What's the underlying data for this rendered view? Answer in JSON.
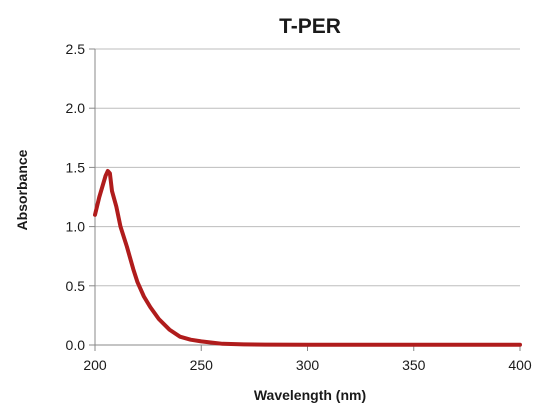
{
  "chart_data": {
    "type": "line",
    "title": "T-PER",
    "xlabel": "Wavelength (nm)",
    "ylabel": "Absorbance",
    "xlim": [
      200,
      400
    ],
    "ylim": [
      0,
      2.5
    ],
    "xticks": [
      "200",
      "250",
      "300",
      "350",
      "400"
    ],
    "yticks": [
      "0.0",
      "0.5",
      "1.0",
      "1.5",
      "2.0",
      "2.5"
    ],
    "grid": true,
    "legend": "none",
    "series": [
      {
        "color": "#b01c1c",
        "x": [
          200,
          202,
          204,
          205,
          206,
          207,
          208,
          210,
          212,
          215,
          218,
          220,
          223,
          226,
          230,
          235,
          240,
          245,
          250,
          255,
          260,
          270,
          280,
          300,
          320,
          350,
          380,
          400
        ],
        "y": [
          1.1,
          1.25,
          1.37,
          1.43,
          1.47,
          1.45,
          1.3,
          1.17,
          1.0,
          0.83,
          0.64,
          0.53,
          0.41,
          0.32,
          0.22,
          0.13,
          0.07,
          0.045,
          0.03,
          0.02,
          0.01,
          0.005,
          0.003,
          0.002,
          0.002,
          0.002,
          0.002,
          0.002
        ]
      }
    ]
  }
}
